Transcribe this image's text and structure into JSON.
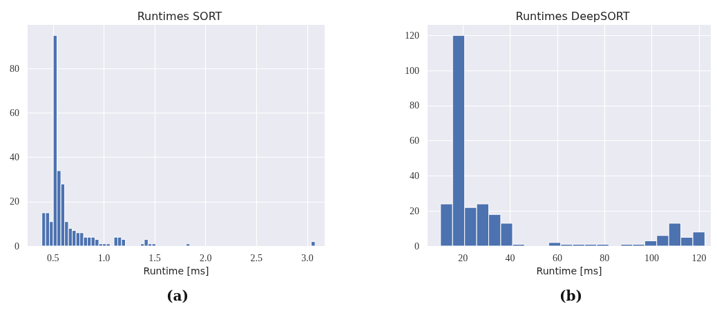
{
  "chart_data": [
    {
      "type": "histogram",
      "title": "Runtimes SORT",
      "xlabel": "Runtime [ms]",
      "annotations": [
        "(a)"
      ],
      "color": "#4c72b0",
      "grid": true,
      "bins": [
        0.39,
        0.427,
        0.465,
        0.502,
        0.539,
        0.577,
        0.614,
        0.651,
        0.688,
        0.726,
        0.763,
        0.8,
        0.838,
        0.875,
        0.912,
        0.95,
        0.987,
        1.024,
        1.061,
        1.099,
        1.136,
        1.173,
        1.211,
        1.248,
        1.285,
        1.323,
        1.36,
        1.397,
        1.434,
        1.472,
        1.509,
        1.546,
        1.584,
        1.621,
        1.658,
        1.696,
        1.733,
        1.77,
        1.807,
        1.845,
        1.882,
        1.919,
        1.957,
        1.994,
        2.031,
        2.069,
        2.106,
        2.143,
        2.18,
        2.218,
        2.255,
        2.292,
        2.33,
        2.367,
        2.404,
        2.442,
        2.479,
        2.516,
        2.553,
        2.591,
        2.628,
        2.665,
        2.703,
        2.74,
        2.777,
        2.815,
        2.852,
        2.889,
        2.926,
        2.964,
        3.001,
        3.038,
        3.076
      ],
      "values": [
        15,
        15,
        11,
        95,
        34,
        28,
        11,
        8,
        7,
        6,
        6,
        4,
        4,
        4,
        3,
        1,
        1,
        1,
        0,
        4,
        4,
        3,
        0,
        0,
        0,
        0,
        1,
        3,
        1,
        1,
        0,
        0,
        0,
        0,
        0,
        0,
        0,
        0,
        1,
        0,
        0,
        0,
        0,
        0,
        0,
        0,
        0,
        0,
        0,
        0,
        0,
        0,
        0,
        0,
        0,
        0,
        0,
        0,
        0,
        0,
        0,
        0,
        0,
        0,
        0,
        0,
        0,
        0,
        0,
        0,
        0,
        2
      ],
      "xlim": [
        0.25,
        3.17
      ],
      "xticks": [
        0.5,
        {
          "value": 1,
          "label": "1.0"
        },
        1.5,
        {
          "value": 2,
          "label": "2.0"
        },
        2.5,
        {
          "value": 3,
          "label": "3.0"
        }
      ],
      "ylim": [
        0,
        99.75
      ],
      "yticks": [
        0,
        20,
        40,
        60,
        80
      ]
    },
    {
      "type": "histogram",
      "title": "Runtimes DeepSORT",
      "xlabel": "Runtime [ms]",
      "annotations": [
        "(b)"
      ],
      "color": "#4c72b0",
      "grid": true,
      "bins": [
        10.5,
        15.6,
        20.7,
        25.8,
        30.9,
        36.0,
        41.0,
        46.1,
        51.2,
        56.3,
        61.4,
        66.5,
        71.6,
        76.7,
        81.8,
        86.9,
        91.9,
        97.0,
        102.1,
        107.2,
        112.3,
        117.4,
        122.5
      ],
      "values": [
        24,
        120,
        22,
        24,
        18,
        13,
        1,
        0,
        0,
        2,
        1,
        1,
        1,
        1,
        0,
        1,
        1,
        3,
        6,
        13,
        5,
        8
      ],
      "xlim": [
        5,
        125
      ],
      "xticks": [
        20,
        40,
        60,
        80,
        100,
        120
      ],
      "ylim": [
        0,
        126
      ],
      "yticks": [
        0,
        20,
        40,
        60,
        80,
        100,
        120
      ]
    }
  ]
}
